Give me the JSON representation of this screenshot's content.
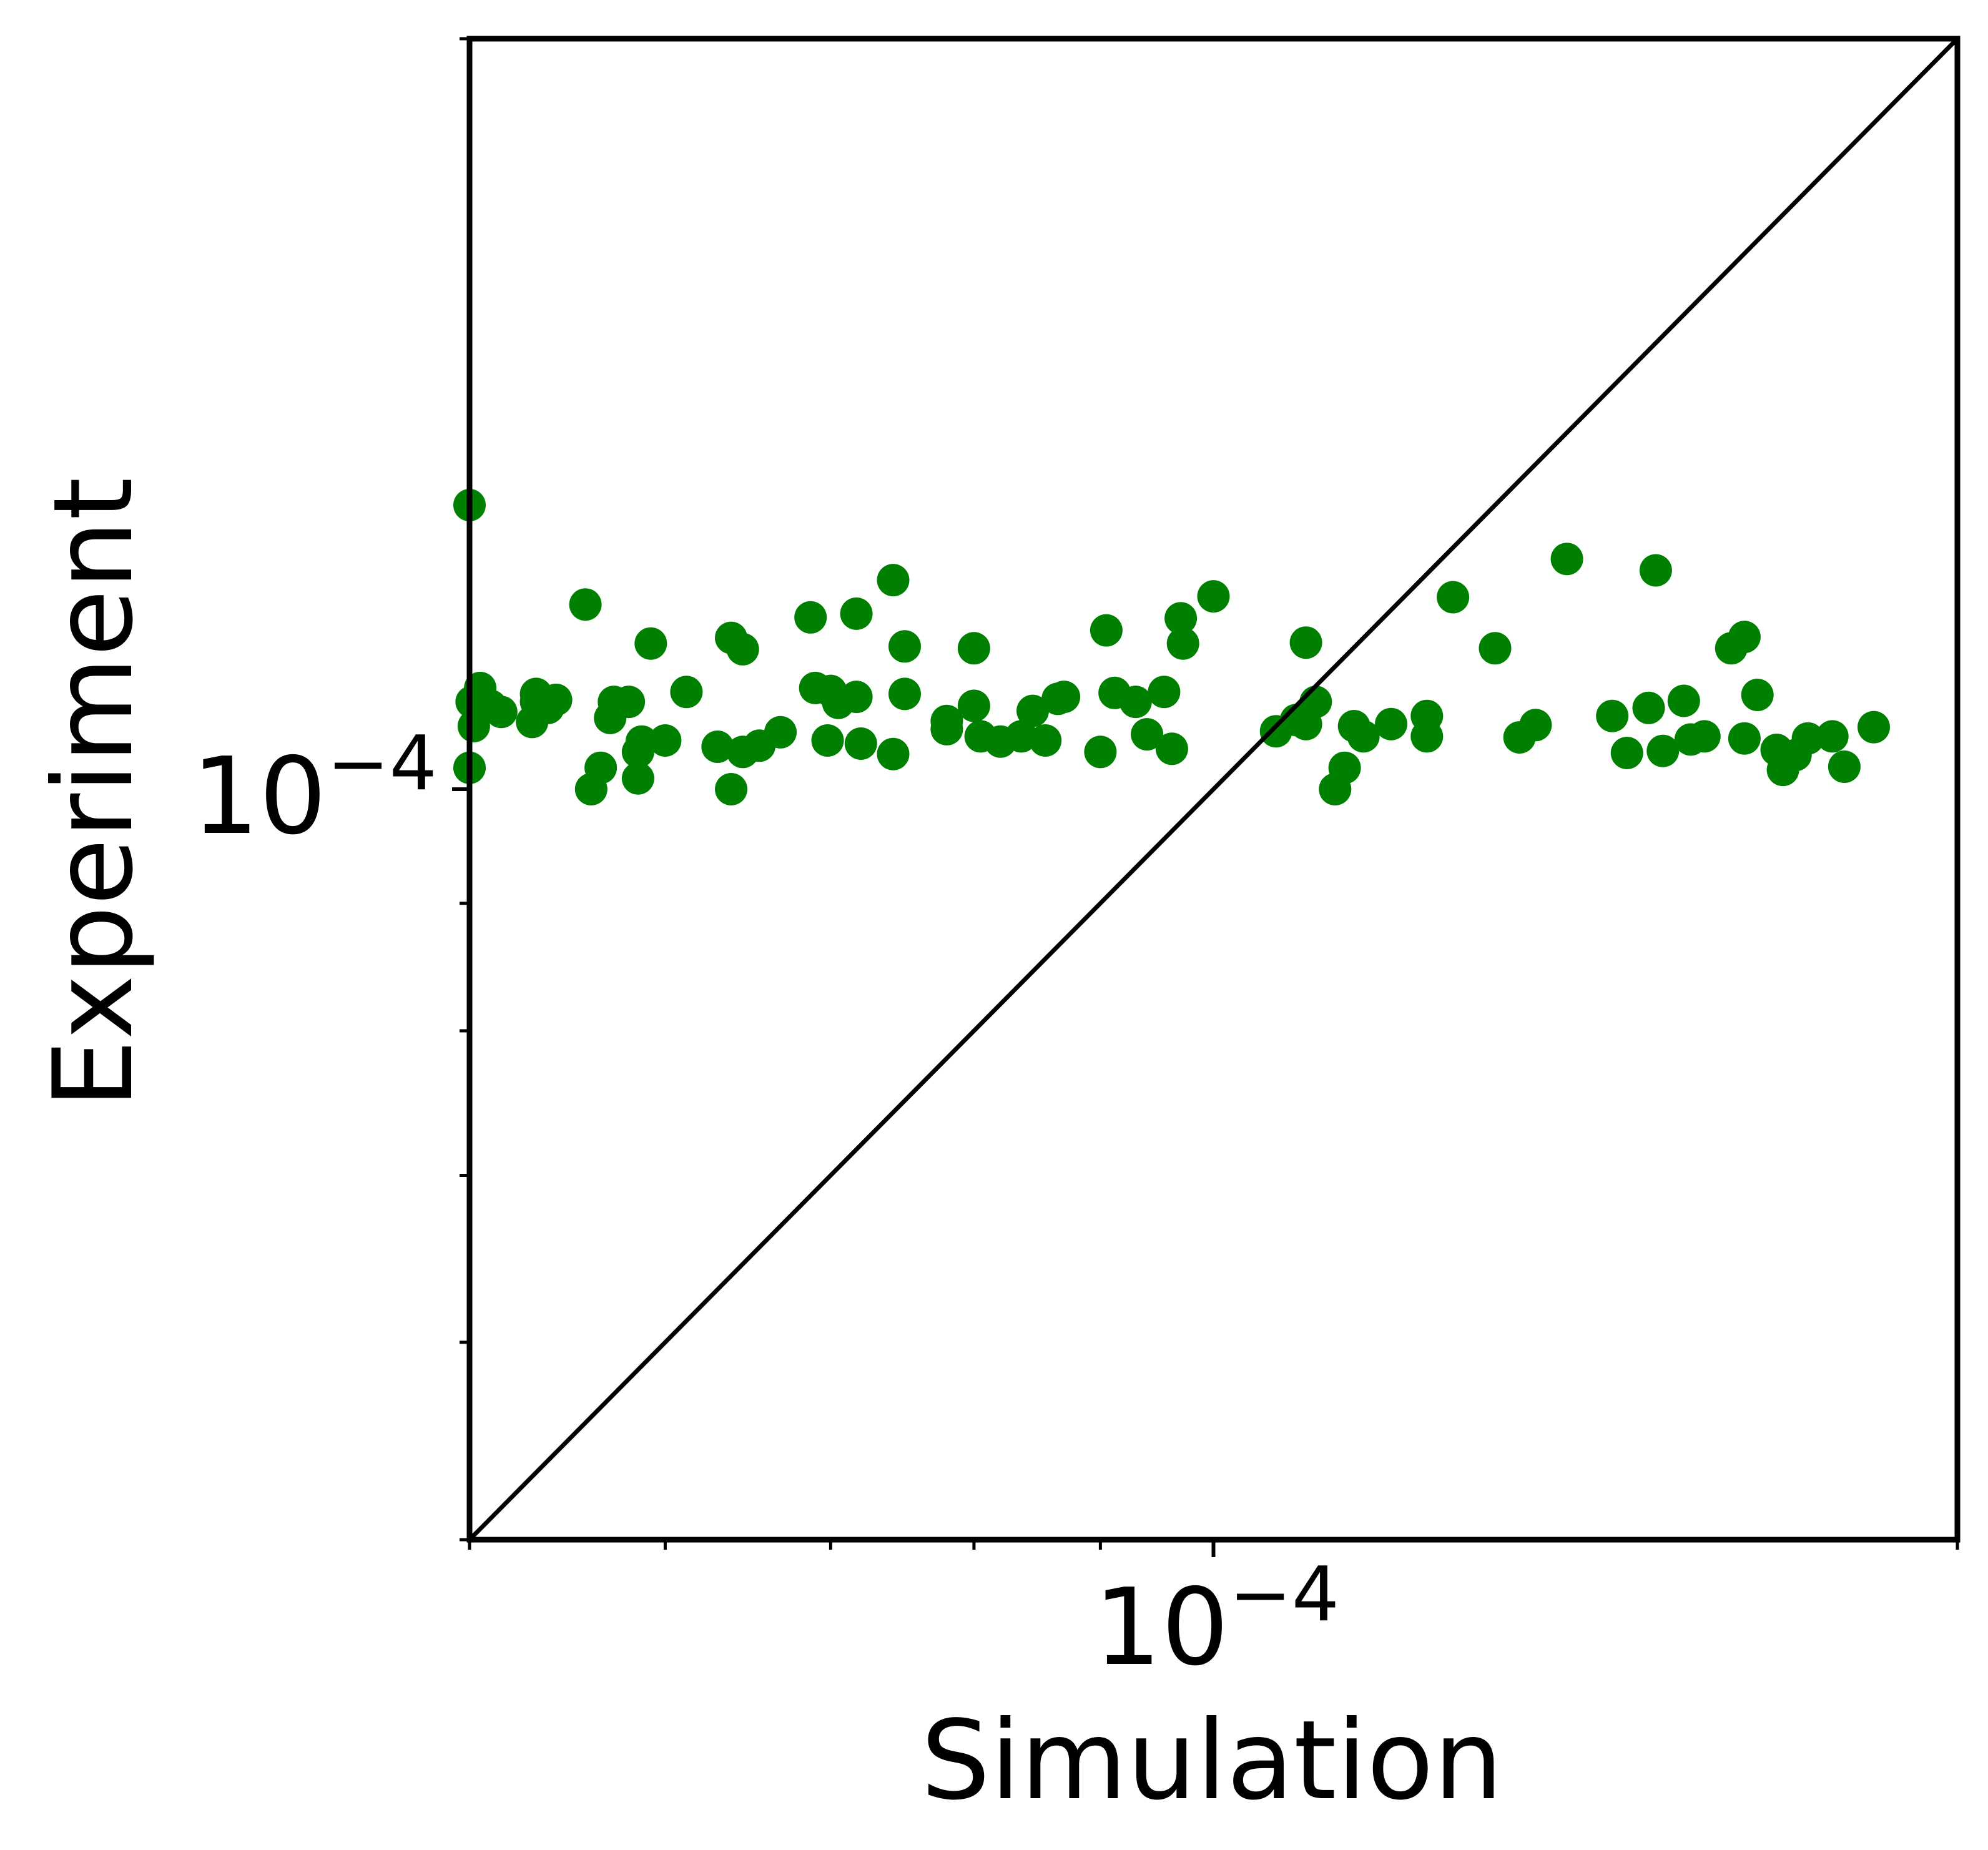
{
  "chart_data": {
    "type": "scatter",
    "xlabel": "Simulation",
    "ylabel": "Experiment",
    "xscale": "log",
    "yscale": "log",
    "xlim": [
      5e-05,
      0.0002
    ],
    "ylim": [
      5e-05,
      0.0002
    ],
    "grid": false,
    "point_color": "#008000",
    "reference_line": {
      "type": "y=x",
      "color": "#000000"
    },
    "xticks": [
      {
        "value": 0.0001,
        "label": "10",
        "exp": "−4"
      }
    ],
    "yticks": [
      {
        "value": 0.0001,
        "label": "10",
        "exp": "−4"
      }
    ],
    "points": [
      [
        5e-05,
        0.00013
      ],
      [
        5e-05,
        0.000102
      ],
      [
        5.02e-05,
        0.000106
      ],
      [
        5.01e-05,
        0.0001084
      ],
      [
        5.05e-05,
        0.0001098
      ],
      [
        5.1e-05,
        0.000108
      ],
      [
        5.15e-05,
        0.0001074
      ],
      [
        5.32e-05,
        0.0001092
      ],
      [
        5.32e-05,
        0.0001084
      ],
      [
        5.3e-05,
        0.0001064
      ],
      [
        5.38e-05,
        0.0001078
      ],
      [
        5.42e-05,
        0.0001086
      ],
      [
        5.57e-05,
        0.0001186
      ],
      [
        5.6e-05,
        0.0001
      ],
      [
        5.65e-05,
        0.000102
      ],
      [
        5.7e-05,
        0.0001068
      ],
      [
        5.72e-05,
        0.0001084
      ],
      [
        5.8e-05,
        0.0001084
      ],
      [
        5.85e-05,
        0.000101
      ],
      [
        5.87e-05,
        0.0001045
      ],
      [
        5.85e-05,
        0.0001035
      ],
      [
        5.92e-05,
        0.0001144
      ],
      [
        6e-05,
        0.0001046
      ],
      [
        6.12e-05,
        0.0001094
      ],
      [
        6.3e-05,
        0.000104
      ],
      [
        6.38e-05,
        0.000115
      ],
      [
        6.45e-05,
        0.0001138
      ],
      [
        6.38e-05,
        0.0001
      ],
      [
        6.45e-05,
        0.0001035
      ],
      [
        6.55e-05,
        0.0001041
      ],
      [
        6.68e-05,
        0.0001054
      ],
      [
        6.87e-05,
        0.0001172
      ],
      [
        6.9e-05,
        0.0001098
      ],
      [
        6.98e-05,
        0.0001046
      ],
      [
        7e-05,
        0.0001095
      ],
      [
        7.05e-05,
        0.0001083
      ],
      [
        7.17e-05,
        0.0001089
      ],
      [
        7.2e-05,
        0.0001043
      ],
      [
        7.17e-05,
        0.0001176
      ],
      [
        7.42e-05,
        0.0001213
      ],
      [
        7.5e-05,
        0.0001092
      ],
      [
        7.5e-05,
        0.0001141
      ],
      [
        7.42e-05,
        0.0001033
      ],
      [
        7.8e-05,
        0.0001065
      ],
      [
        7.8e-05,
        0.0001057
      ],
      [
        8e-05,
        0.0001139
      ],
      [
        8e-05,
        0.000108
      ],
      [
        8.05e-05,
        0.000105
      ],
      [
        8.2e-05,
        0.0001045
      ],
      [
        8.36e-05,
        0.000105
      ],
      [
        8.45e-05,
        0.0001075
      ],
      [
        8.65e-05,
        0.0001087
      ],
      [
        8.7e-05,
        0.0001089
      ],
      [
        8.55e-05,
        0.0001046
      ],
      [
        9e-05,
        0.0001035
      ],
      [
        9.05e-05,
        0.0001158
      ],
      [
        9.12e-05,
        0.0001093
      ],
      [
        9.3e-05,
        0.0001084
      ],
      [
        9.4e-05,
        0.0001052
      ],
      [
        9.55e-05,
        0.0001094
      ],
      [
        9.62e-05,
        0.0001038
      ],
      [
        9.7e-05,
        0.0001171
      ],
      [
        9.72e-05,
        0.0001144
      ],
      [
        0.0001,
        0.0001195
      ],
      [
        0.000106,
        0.0001055
      ],
      [
        0.000108,
        0.0001066
      ],
      [
        0.000109,
        0.0001145
      ],
      [
        0.000109,
        0.0001062
      ],
      [
        0.00011,
        0.0001084
      ],
      [
        0.000112,
        0.0001
      ],
      [
        0.000114,
        0.000106
      ],
      [
        0.000113,
        0.000102
      ],
      [
        0.000115,
        0.000105
      ],
      [
        0.000118,
        0.0001062
      ],
      [
        0.000122,
        0.000107
      ],
      [
        0.000122,
        0.000105
      ],
      [
        0.000125,
        0.0001194
      ],
      [
        0.00013,
        0.0001139
      ],
      [
        0.000133,
        0.0001049
      ],
      [
        0.000135,
        0.0001061
      ],
      [
        0.000139,
        0.0001237
      ],
      [
        0.000145,
        0.000107
      ],
      [
        0.000147,
        0.0001034
      ],
      [
        0.00015,
        0.0001078
      ],
      [
        0.000151,
        0.0001224
      ],
      [
        0.000152,
        0.0001036
      ],
      [
        0.000155,
        0.0001085
      ],
      [
        0.000156,
        0.0001047
      ],
      [
        0.000158,
        0.000105
      ],
      [
        0.000162,
        0.0001139
      ],
      [
        0.000164,
        0.0001151
      ],
      [
        0.000164,
        0.0001048
      ],
      [
        0.000166,
        0.0001091
      ],
      [
        0.00017,
        0.0001018
      ],
      [
        0.000169,
        0.0001037
      ],
      [
        0.000172,
        0.0001032
      ],
      [
        0.000174,
        0.0001048
      ],
      [
        0.000178,
        0.000105
      ],
      [
        0.00018,
        0.0001021
      ],
      [
        0.000185,
        0.0001059
      ]
    ]
  }
}
